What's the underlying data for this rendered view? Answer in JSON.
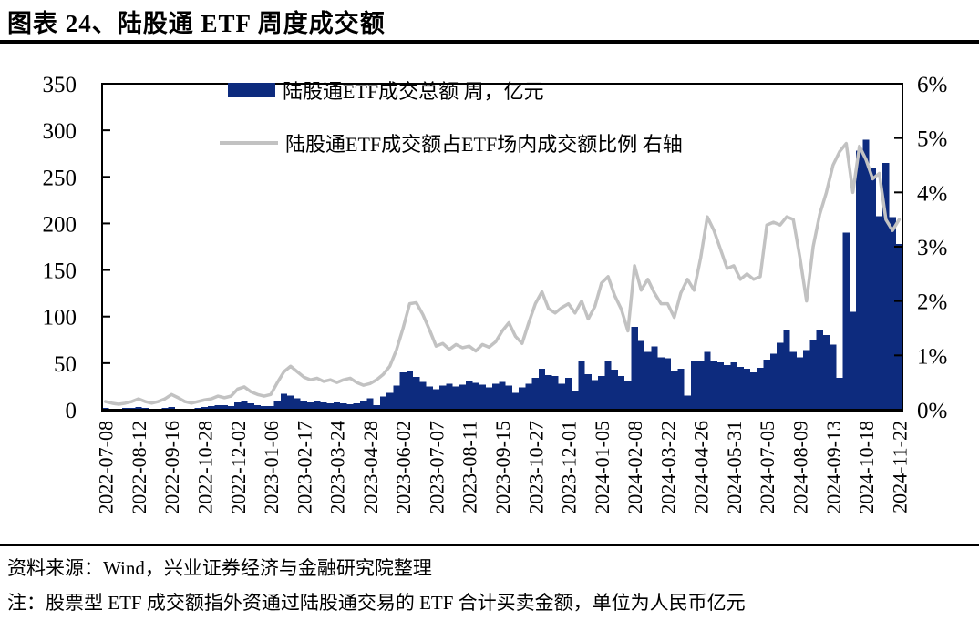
{
  "title": "图表 24、陆股通 ETF 周度成交额",
  "legend": [
    {
      "label": "陆股通ETF成交总额 周，亿元",
      "type": "bar",
      "color": "#0d2b7e"
    },
    {
      "label": "陆股通ETF成交额占ETF场内成交额比例 右轴",
      "type": "line",
      "color": "#c2c2c2"
    }
  ],
  "source_note": "资料来源：Wind，兴业证券经济与金融研究院整理",
  "footnote": "注：股票型 ETF 成交额指外资通过陆股通交易的 ETF 合计买卖金额，单位为人民币亿元",
  "chart_data": {
    "type": "bar+line",
    "label_every": 5,
    "x_tick_labels": [
      "2022-07-08",
      "2022-08-12",
      "2022-09-16",
      "2022-10-28",
      "2022-12-02",
      "2023-01-06",
      "2023-02-17",
      "2023-03-24",
      "2023-04-28",
      "2023-06-02",
      "2023-07-07",
      "2023-08-11",
      "2023-09-15",
      "2023-10-27",
      "2023-12-01",
      "2024-01-05",
      "2024-02-08",
      "2024-03-22",
      "2024-04-26",
      "2024-05-31",
      "2024-07-05",
      "2024-08-09",
      "2024-09-13",
      "2024-10-18",
      "2024-11-22"
    ],
    "left_axis": {
      "min": 0,
      "max": 350,
      "ticks": [
        0,
        50,
        100,
        150,
        200,
        250,
        300,
        350
      ]
    },
    "right_axis": {
      "min": 0,
      "max": 6,
      "tick_labels": [
        "0%",
        "1%",
        "2%",
        "3%",
        "4%",
        "5%",
        "6%"
      ]
    },
    "grid": false,
    "legend_position": "top-center-inside",
    "series": [
      {
        "name": "陆股通ETF成交总额 周，亿元",
        "type": "bar",
        "axis": "left",
        "color": "#0d2b7e",
        "values": [
          2,
          1,
          1,
          2,
          2,
          3,
          2,
          1,
          1,
          2,
          3,
          1,
          1,
          1,
          2,
          3,
          4,
          5,
          5,
          4,
          8,
          10,
          7,
          5,
          4,
          4,
          9,
          17,
          15,
          12,
          10,
          8,
          9,
          8,
          7,
          8,
          7,
          6,
          7,
          9,
          12,
          5,
          14,
          18,
          26,
          40,
          41,
          35,
          30,
          25,
          22,
          26,
          28,
          25,
          27,
          31,
          29,
          27,
          24,
          28,
          30,
          26,
          18,
          24,
          28,
          34,
          44,
          37,
          36,
          28,
          34,
          20,
          52,
          38,
          32,
          36,
          53,
          43,
          36,
          31,
          89,
          74,
          62,
          68,
          56,
          55,
          41,
          44,
          15,
          52,
          52,
          62,
          53,
          51,
          48,
          51,
          46,
          44,
          40,
          45,
          54,
          60,
          72,
          85,
          62,
          56,
          64,
          75,
          86,
          80,
          70,
          34,
          190,
          105,
          278,
          290,
          260,
          208,
          265,
          207,
          178
        ]
      },
      {
        "name": "陆股通ETF成交额占ETF场内成交额比例 右轴",
        "type": "line",
        "axis": "right",
        "color": "#c2c2c2",
        "values": [
          0.15,
          0.12,
          0.1,
          0.12,
          0.15,
          0.2,
          0.15,
          0.12,
          0.15,
          0.2,
          0.28,
          0.22,
          0.15,
          0.12,
          0.15,
          0.18,
          0.2,
          0.25,
          0.22,
          0.25,
          0.38,
          0.42,
          0.33,
          0.28,
          0.25,
          0.28,
          0.5,
          0.7,
          0.8,
          0.7,
          0.6,
          0.55,
          0.58,
          0.52,
          0.55,
          0.5,
          0.55,
          0.58,
          0.5,
          0.45,
          0.48,
          0.55,
          0.65,
          0.8,
          1.1,
          1.5,
          1.95,
          1.97,
          1.75,
          1.47,
          1.17,
          1.22,
          1.11,
          1.2,
          1.14,
          1.17,
          1.08,
          1.2,
          1.15,
          1.25,
          1.45,
          1.6,
          1.35,
          1.22,
          1.6,
          1.95,
          2.17,
          1.86,
          1.78,
          1.88,
          1.95,
          1.78,
          2.0,
          1.67,
          1.9,
          2.33,
          2.45,
          2.1,
          1.85,
          1.45,
          2.65,
          2.2,
          2.4,
          2.15,
          1.95,
          1.95,
          1.7,
          2.15,
          2.4,
          2.2,
          2.8,
          3.55,
          3.3,
          2.95,
          2.6,
          2.65,
          2.4,
          2.5,
          2.4,
          2.45,
          3.4,
          3.45,
          3.4,
          3.55,
          3.5,
          2.8,
          2.0,
          3.0,
          3.6,
          4.0,
          4.5,
          4.75,
          4.9,
          4.0,
          4.85,
          4.6,
          4.25,
          4.35,
          3.5,
          3.3,
          3.5
        ]
      }
    ]
  }
}
